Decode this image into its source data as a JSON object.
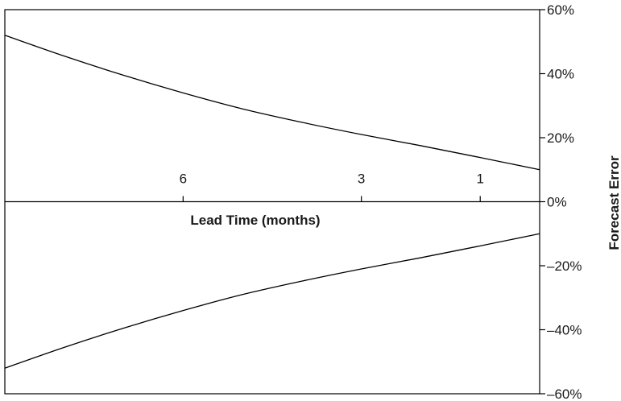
{
  "chart_data": {
    "type": "line",
    "title": "",
    "ylabel": "Forecast Error",
    "xlabel": "Lead Time (months)",
    "ylim": [
      -60,
      60
    ],
    "y_ticks": [
      {
        "value": 60,
        "label": "60%"
      },
      {
        "value": 40,
        "label": "40%"
      },
      {
        "value": 20,
        "label": "20%"
      },
      {
        "value": 0,
        "label": "0%"
      },
      {
        "value": -20,
        "label": "–20%"
      },
      {
        "value": -40,
        "label": "–40%"
      },
      {
        "value": -60,
        "label": "–60%"
      }
    ],
    "x_ticks": [
      {
        "value": 6,
        "label": "6"
      },
      {
        "value": 3,
        "label": "3"
      },
      {
        "value": 1,
        "label": "1"
      }
    ],
    "x_reversed": true,
    "grid": false,
    "series": [
      {
        "x": [
          9,
          8,
          7,
          6,
          5,
          4,
          3,
          2,
          1,
          0
        ],
        "values": [
          52,
          45.5,
          39.5,
          34,
          29,
          24.8,
          21,
          17.5,
          13.8,
          10
        ]
      },
      {
        "x": [
          9,
          8,
          7,
          6,
          5,
          4,
          3,
          2,
          1,
          0
        ],
        "values": [
          -52,
          -45.5,
          -39.5,
          -34,
          -29,
          -24.8,
          -21,
          -17.5,
          -13.8,
          -10
        ]
      }
    ]
  }
}
